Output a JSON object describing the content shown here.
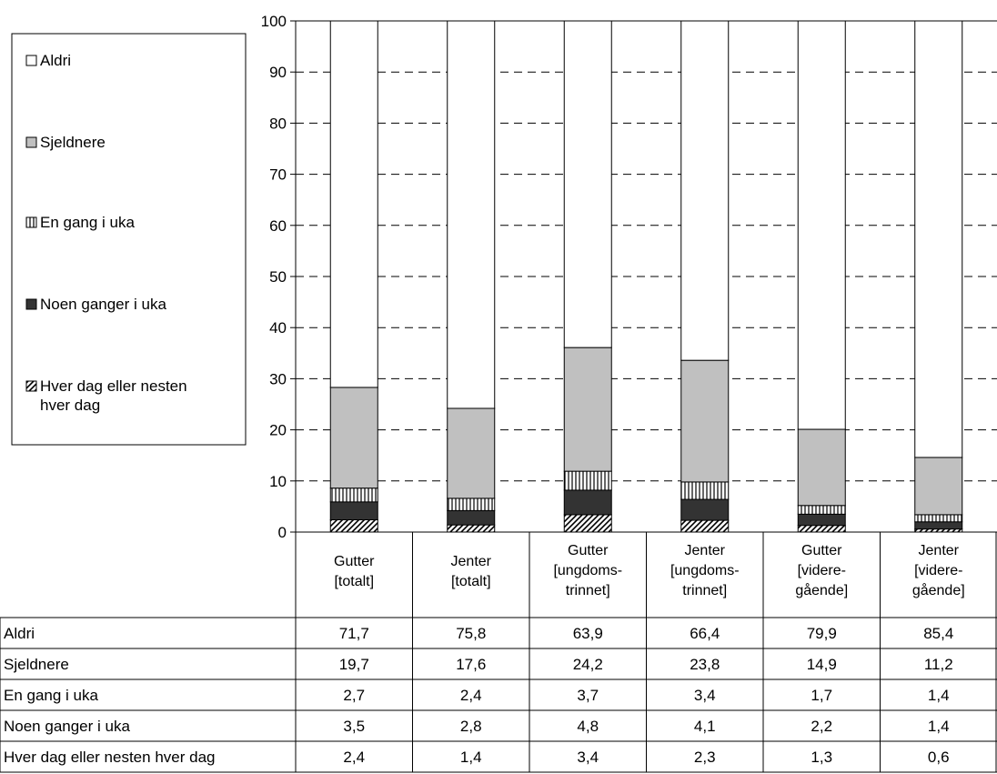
{
  "chart_data": {
    "type": "bar",
    "stacked": true,
    "categories": [
      [
        "Gutter",
        "[totalt]"
      ],
      [
        "Jenter",
        "[totalt]"
      ],
      [
        "Gutter",
        "[ungdoms-",
        "trinnet]"
      ],
      [
        "Jenter",
        "[ungdoms-",
        "trinnet]"
      ],
      [
        "Gutter",
        "[videre-",
        "gående]"
      ],
      [
        "Jenter",
        "[videre-",
        "gående]"
      ]
    ],
    "series": [
      {
        "name": "Hver dag eller nesten hver dag",
        "legend_lines": [
          "Hver dag eller nesten",
          "hver dag"
        ],
        "table_label": "Hver dag eller nesten hver dag",
        "pattern": "hatch",
        "values": [
          2.4,
          1.4,
          3.4,
          2.3,
          1.3,
          0.6
        ]
      },
      {
        "name": "Noen ganger i uka",
        "legend_lines": [
          "Noen ganger i uka"
        ],
        "table_label": "Noen ganger i uka",
        "pattern": "solid-dark",
        "values": [
          3.5,
          2.8,
          4.8,
          4.1,
          2.2,
          1.4
        ]
      },
      {
        "name": "En gang i uka",
        "legend_lines": [
          "En gang i uka"
        ],
        "table_label": "En gang i uka",
        "pattern": "vertical-lines",
        "values": [
          2.7,
          2.4,
          3.7,
          3.4,
          1.7,
          1.4
        ]
      },
      {
        "name": "Sjeldnere",
        "legend_lines": [
          "Sjeldnere"
        ],
        "table_label": "Sjeldnere",
        "pattern": "solid-gray",
        "values": [
          19.7,
          17.6,
          24.2,
          23.8,
          14.9,
          11.2
        ]
      },
      {
        "name": "Aldri",
        "legend_lines": [
          "Aldri"
        ],
        "table_label": "Aldri",
        "pattern": "white",
        "values": [
          71.7,
          75.8,
          63.9,
          66.4,
          79.9,
          85.4
        ]
      }
    ],
    "ylim": [
      0,
      100
    ],
    "yticks": [
      0,
      10,
      20,
      30,
      40,
      50,
      60,
      70,
      80,
      90,
      100
    ],
    "grid": "dashed horizontal",
    "legend": "left",
    "legend_order": [
      "Aldri",
      "Sjeldnere",
      "En gang i uka",
      "Noen ganger i uka",
      "Hver dag eller nesten hver dag"
    ],
    "table": {
      "row_order": [
        "Aldri",
        "Sjeldnere",
        "En gang i uka",
        "Noen ganger i uka",
        "Hver dag eller nesten hver dag"
      ],
      "values": [
        [
          "71,7",
          "75,8",
          "63,9",
          "66,4",
          "79,9",
          "85,4"
        ],
        [
          "19,7",
          "17,6",
          "24,2",
          "23,8",
          "14,9",
          "11,2"
        ],
        [
          "2,7",
          "2,4",
          "3,7",
          "3,4",
          "1,7",
          "1,4"
        ],
        [
          "3,5",
          "2,8",
          "4,8",
          "4,1",
          "2,2",
          "1,4"
        ],
        [
          "2,4",
          "1,4",
          "3,4",
          "2,3",
          "1,3",
          "0,6"
        ]
      ]
    },
    "colors": {
      "dark": "#333333",
      "gray": "#c0c0c0",
      "white": "#ffffff",
      "line": "#000000"
    }
  }
}
